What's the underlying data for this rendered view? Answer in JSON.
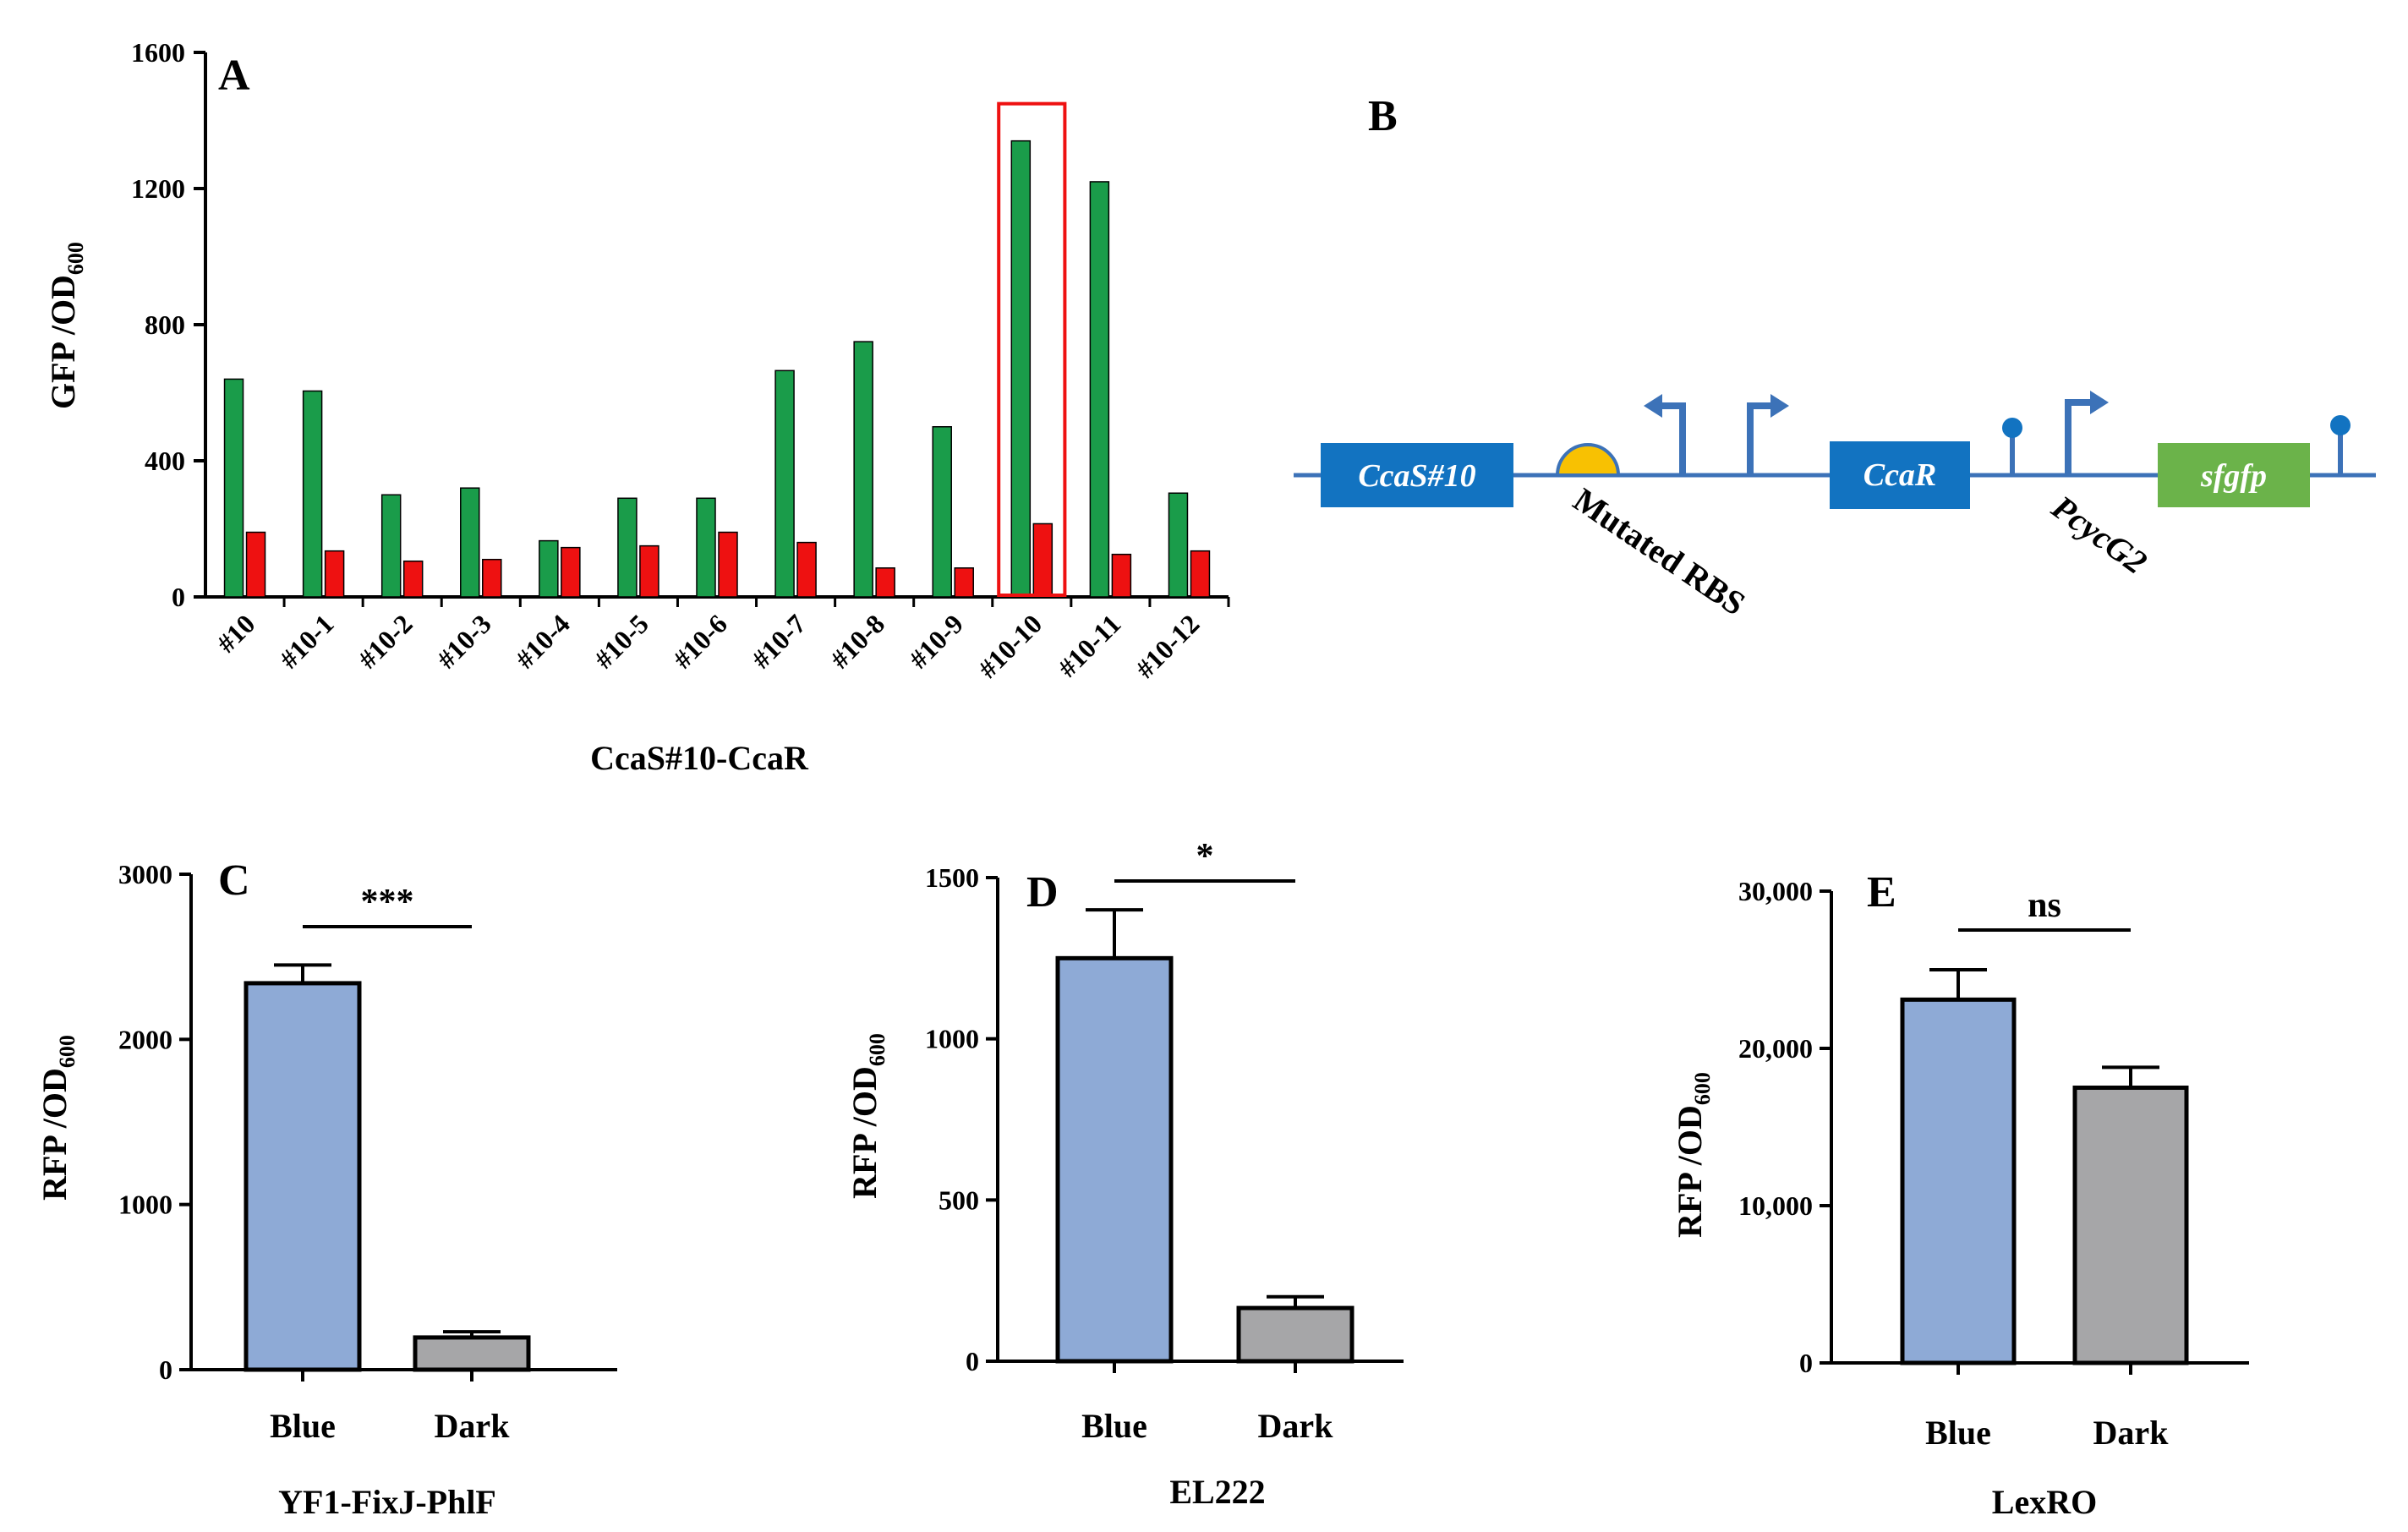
{
  "chart_data": [
    {
      "panel": "A",
      "type": "bar",
      "ylabel": "GFP /OD",
      "ylabel_sub": "600",
      "xlabel": "CcaS#10-CcaR",
      "ylim": [
        0,
        1600
      ],
      "yticks": [
        "0",
        "400",
        "800",
        "1200",
        "1600"
      ],
      "categories": [
        "#10",
        "#10-1",
        "#10-2",
        "#10-3",
        "#10-4",
        "#10-5",
        "#10-6",
        "#10-7",
        "#10-8",
        "#10-9",
        "#10-10",
        "#10-11",
        "#10-12"
      ],
      "series": [
        {
          "name": "green",
          "color": "#1a9c4a",
          "values": [
            640,
            605,
            300,
            320,
            165,
            290,
            290,
            665,
            750,
            500,
            1340,
            1220,
            305
          ]
        },
        {
          "name": "red",
          "color": "#ee1111",
          "values": [
            190,
            135,
            105,
            110,
            145,
            150,
            190,
            160,
            85,
            85,
            215,
            125,
            135
          ]
        }
      ],
      "highlight_index": 10,
      "highlight_color": "#ee1111"
    },
    {
      "panel": "C",
      "type": "bar",
      "ylabel": "RFP /OD",
      "ylabel_sub": "600",
      "xlabel": "YF1-FixJ-PhlF",
      "ylim": [
        0,
        3000
      ],
      "yticks": [
        "0",
        "1000",
        "2000",
        "3000"
      ],
      "categories": [
        "Blue",
        "Dark"
      ],
      "values": [
        2340,
        195
      ],
      "errors": [
        110,
        35
      ],
      "colors": [
        "#8eaad6",
        "#a6a6a8"
      ],
      "significance": "***"
    },
    {
      "panel": "D",
      "type": "bar",
      "ylabel": "RFP /OD",
      "ylabel_sub": "600",
      "xlabel": "EL222",
      "ylim": [
        0,
        1500
      ],
      "yticks": [
        "0",
        "500",
        "1000",
        "1500"
      ],
      "categories": [
        "Blue",
        "Dark"
      ],
      "values": [
        1250,
        165
      ],
      "errors": [
        150,
        35
      ],
      "colors": [
        "#8eaad6",
        "#a6a6a8"
      ],
      "significance": "*"
    },
    {
      "panel": "E",
      "type": "bar",
      "ylabel": "RFP /OD",
      "ylabel_sub": "600",
      "xlabel": "LexRO",
      "ylim": [
        0,
        30000
      ],
      "yticks": [
        "0",
        "10,000",
        "20,000",
        "30,000"
      ],
      "categories": [
        "Blue",
        "Dark"
      ],
      "values": [
        23100,
        17500
      ],
      "errors": [
        1900,
        1300
      ],
      "colors": [
        "#8eaad6",
        "#a6a6a8"
      ],
      "significance": "ns"
    }
  ],
  "diagram": {
    "panel": "B",
    "line_color": "#3c72b8",
    "box_color": "#1273c1",
    "gfp_color": "#6bb34a",
    "rbs_color": "#f8c102",
    "parts": {
      "ccas": "CcaS#10",
      "ccar": "CcaR",
      "sfgfp": "sfgfp"
    },
    "labels": {
      "rbs": "Mutated RBS",
      "promoter": "PcycG2"
    }
  }
}
